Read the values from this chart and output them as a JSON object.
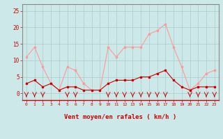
{
  "x": [
    0,
    1,
    2,
    3,
    4,
    5,
    6,
    7,
    8,
    9,
    10,
    11,
    12,
    13,
    14,
    15,
    16,
    17,
    18,
    19,
    20,
    21,
    22,
    23
  ],
  "wind_avg": [
    3,
    4,
    2,
    3,
    1,
    2,
    2,
    1,
    1,
    1,
    3,
    4,
    4,
    4,
    5,
    5,
    6,
    7,
    4,
    2,
    1,
    2,
    2,
    2
  ],
  "wind_gust": [
    11,
    14,
    8,
    3,
    1,
    8,
    7,
    3,
    1,
    1,
    14,
    11,
    14,
    14,
    14,
    18,
    19,
    21,
    14,
    8,
    1,
    3,
    6,
    7
  ],
  "rain_x": [
    0,
    1,
    2,
    5,
    6,
    10,
    11,
    12,
    13,
    14,
    15,
    16,
    17,
    20,
    21,
    22,
    23
  ],
  "ylabel_vals": [
    0,
    5,
    10,
    15,
    20,
    25
  ],
  "xlim": [
    -0.5,
    23.5
  ],
  "ylim": [
    -2,
    27
  ],
  "bg_color": "#cde8e8",
  "grid_color": "#aacccc",
  "line_avg_color": "#cc0000",
  "line_gust_color": "#ff9999",
  "xlabel": "Vent moyen/en rafales ( km/h )",
  "xlabel_color": "#cc0000",
  "tick_color": "#cc0000",
  "arrow_color": "#cc0000",
  "spine_color": "#888888"
}
